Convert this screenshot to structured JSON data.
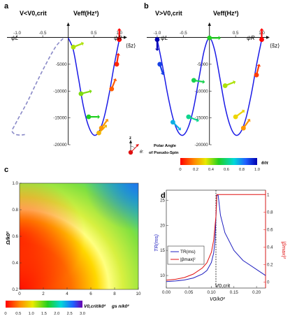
{
  "panels": {
    "a": {
      "letter": "a",
      "title": "V<V0,crit",
      "ylabel": "Veff(Hz²)",
      "xlabel": "⟨s̃z⟩",
      "psi_left": "ψL",
      "psi_right": "ψR"
    },
    "b": {
      "letter": "b",
      "title": "V>V0,crit",
      "ylabel": "Veff(Hz²)",
      "xlabel": "⟨s̃z⟩",
      "psi_left": "ψL",
      "psi_right": "ψR"
    },
    "c": {
      "letter": "c",
      "ylabel": "Ω/k0²",
      "xlabel": "gs n/k0²",
      "cb_label": "V0,crit/k0²"
    },
    "d": {
      "letter": "d",
      "ylabel_left": "TR(ms)",
      "ylabel_right": "|βmax|²",
      "xlabel": "V0/k0²",
      "annot": "V0,crit"
    }
  },
  "polar_legend": {
    "z": "z",
    "theta": "θ:",
    "text1": "Polar Angle",
    "text2": "of Pseudo-Spin",
    "cb_label": "θ/π"
  },
  "colors": {
    "curve": "#1a1ae6",
    "dashed": "#8a8ac8",
    "red_axis": "#e01010",
    "blue": "#2020c0"
  },
  "chart_data": [
    {
      "id": "a",
      "type": "line",
      "title": "V<V0,crit",
      "xlabel": "⟨s̃z⟩",
      "ylabel": "Veff(Hz²)",
      "xlim": [
        -1.2,
        1.1
      ],
      "ylim": [
        -20000,
        1500
      ],
      "x_ticks": [
        -1.0,
        -0.5,
        0.5,
        1.0
      ],
      "x_tick_labels": [
        "-1.0",
        "-0.5",
        "0.5",
        "1.0"
      ],
      "y_ticks": [
        -5000,
        -10000,
        -15000,
        -20000
      ],
      "y_tick_labels": [
        "-5000",
        "-10000",
        "-15000",
        "-20000"
      ],
      "series": [
        {
          "style": "solid",
          "x": [
            0.0,
            0.1,
            0.2,
            0.3,
            0.4,
            0.5,
            0.6,
            0.7,
            0.8,
            0.9,
            1.0
          ],
          "y": [
            -100,
            -2400,
            -7600,
            -13000,
            -16600,
            -18200,
            -17600,
            -15000,
            -10600,
            -5200,
            -400
          ]
        },
        {
          "style": "dashed",
          "x": [
            -0.1,
            -0.25,
            -0.45,
            -0.65,
            -0.8,
            -0.95,
            -1.05,
            -1.1,
            -1.05,
            -0.95,
            -0.85
          ],
          "y": [
            -200,
            -1800,
            -5200,
            -9000,
            -12000,
            -14600,
            -16400,
            -17400,
            -18000,
            -18200,
            -18100
          ]
        }
      ],
      "markers": [
        {
          "x": 0.1,
          "y": -1800,
          "theta": 0.38
        },
        {
          "x": 0.25,
          "y": -10500,
          "theta": 0.42
        },
        {
          "x": 0.4,
          "y": -14800,
          "theta": 0.5
        },
        {
          "x": 0.6,
          "y": -17800,
          "theta": 0.25
        },
        {
          "x": 0.65,
          "y": -16900,
          "theta": 0.2
        },
        {
          "x": 0.85,
          "y": -9600,
          "theta": 0.12
        },
        {
          "x": 0.95,
          "y": -5000,
          "theta": 0.05
        },
        {
          "x": 1.0,
          "y": -400,
          "theta": 0.0
        }
      ]
    },
    {
      "id": "b",
      "type": "line",
      "title": "V>V0,crit",
      "xlabel": "⟨s̃z⟩",
      "ylabel": "Veff(Hz²)",
      "xlim": [
        -1.2,
        1.1
      ],
      "ylim": [
        -20000,
        1500
      ],
      "x_ticks": [
        -1.0,
        -0.5,
        0.5,
        1.0
      ],
      "x_tick_labels": [
        "-1.0",
        "-0.5",
        "0.5",
        "1.0"
      ],
      "y_ticks": [
        -5000,
        -10000,
        -15000,
        -20000
      ],
      "y_tick_labels": [
        "-5000",
        "-10000",
        "-15000",
        "-20000"
      ],
      "series": [
        {
          "style": "solid",
          "x": [
            -1.0,
            -0.9,
            -0.8,
            -0.7,
            -0.6,
            -0.5,
            -0.4,
            -0.3,
            -0.2,
            -0.1,
            0.0,
            0.1,
            0.2,
            0.3,
            0.4,
            0.5,
            0.6,
            0.7,
            0.8,
            0.9,
            1.0
          ],
          "y": [
            -400,
            -5200,
            -10600,
            -15000,
            -17600,
            -18200,
            -16600,
            -13000,
            -7600,
            -2400,
            -100,
            -2400,
            -7600,
            -13000,
            -16600,
            -18200,
            -17600,
            -15000,
            -10600,
            -5200,
            -400
          ]
        }
      ],
      "markers": [
        {
          "x": -1.0,
          "y": -400,
          "theta": 1.0
        },
        {
          "x": -0.95,
          "y": -5000,
          "theta": 0.9
        },
        {
          "x": -0.7,
          "y": -15800,
          "theta": 0.75
        },
        {
          "x": -0.4,
          "y": -14800,
          "theta": 0.62
        },
        {
          "x": -0.3,
          "y": -8000,
          "theta": 0.55
        },
        {
          "x": 0.0,
          "y": -100,
          "theta": 0.5
        },
        {
          "x": 0.3,
          "y": -9000,
          "theta": 0.38
        },
        {
          "x": 0.5,
          "y": -14800,
          "theta": 0.3
        },
        {
          "x": 0.65,
          "y": -16900,
          "theta": 0.2
        },
        {
          "x": 0.9,
          "y": -7000,
          "theta": 0.08
        },
        {
          "x": 1.0,
          "y": -400,
          "theta": 0.0
        }
      ]
    },
    {
      "id": "polar-colorbar",
      "type": "heatmap",
      "label": "θ/π",
      "range": [
        0.0,
        1.0
      ],
      "ticks": [
        0,
        0.2,
        0.4,
        0.6,
        0.8,
        1.0
      ],
      "tick_labels": [
        "0",
        "0.2",
        "0.4",
        "0.6",
        "0.8",
        "1.0"
      ]
    },
    {
      "id": "c",
      "type": "heatmap",
      "xlabel": "gs n/k0²",
      "ylabel": "Ω/k0²",
      "xlim": [
        0,
        10
      ],
      "ylim": [
        0.2,
        1.0
      ],
      "x_ticks": [
        0,
        2,
        4,
        6,
        8,
        10
      ],
      "x_tick_labels": [
        "0",
        "2",
        "4",
        "6",
        "8",
        "10"
      ],
      "y_ticks": [
        0.2,
        0.4,
        0.6,
        0.8,
        1.0
      ],
      "y_tick_labels": [
        "0.2",
        "0.4",
        "0.6",
        "0.8",
        "1.0"
      ],
      "colorbar": {
        "label": "V0,crit/k0²",
        "range": [
          0,
          3.0
        ],
        "ticks": [
          0,
          0.5,
          1.0,
          1.5,
          2.0,
          2.5,
          3.0
        ],
        "tick_labels": [
          "0",
          "0.5",
          "1.0",
          "1.5",
          "2.0",
          "2.5",
          "3.0"
        ]
      }
    },
    {
      "id": "d",
      "type": "line",
      "xlabel": "V0/k0²",
      "ylabel": "TR(ms)",
      "ylabel_right": "|βmax|²",
      "xlim": [
        0,
        0.22
      ],
      "ylim": [
        7.5,
        27
      ],
      "ylim_right": [
        -0.07,
        1.05
      ],
      "x_ticks": [
        0.0,
        0.05,
        0.1,
        0.15,
        0.2
      ],
      "x_tick_labels": [
        "0.00",
        "0.05",
        "0.10",
        "0.15",
        "0.20"
      ],
      "y_ticks": [
        10,
        15,
        20,
        25
      ],
      "y_tick_labels": [
        "10",
        "15",
        "20",
        "25"
      ],
      "y_right_ticks": [
        0,
        0.2,
        0.4,
        0.6,
        0.8,
        1.0
      ],
      "y_right_tick_labels": [
        "0",
        "0.2",
        "0.4",
        "0.6",
        "0.8",
        "1"
      ],
      "vline": 0.11,
      "legend": [
        "TR(ms)",
        "|βmax|²"
      ],
      "series": [
        {
          "name": "TR(ms)",
          "axis": "left",
          "x": [
            0.0,
            0.02,
            0.04,
            0.06,
            0.08,
            0.09,
            0.1,
            0.105,
            0.108,
            0.112,
            0.115,
            0.12,
            0.13,
            0.15,
            0.17,
            0.2,
            0.22
          ],
          "y": [
            8.8,
            8.9,
            9.1,
            9.5,
            10.3,
            11.0,
            12.6,
            14.5,
            17.0,
            26.0,
            26.0,
            22.0,
            18.5,
            15.0,
            13.0,
            11.2,
            10.0
          ]
        },
        {
          "name": "|βmax|²",
          "axis": "right",
          "x": [
            0.0,
            0.02,
            0.04,
            0.06,
            0.08,
            0.09,
            0.1,
            0.105,
            0.11,
            0.112,
            0.22
          ],
          "y": [
            0.02,
            0.03,
            0.05,
            0.09,
            0.16,
            0.22,
            0.34,
            0.48,
            0.75,
            1.0,
            1.0
          ]
        }
      ]
    }
  ]
}
